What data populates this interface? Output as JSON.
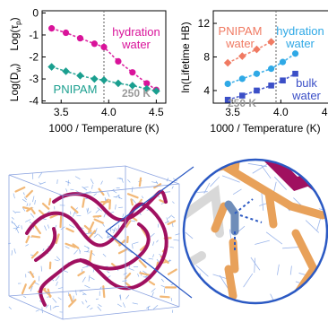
{
  "colors": {
    "magenta": "#d9139a",
    "teal": "#1a9f8f",
    "salmon": "#f07a62",
    "skyblue": "#2fa9e6",
    "navy": "#3b4fc7",
    "gray": "#9a9a9a",
    "polymer": "#a01060",
    "sidechain": "#f2b877",
    "water": "#5f8fe0",
    "inset_border": "#2b59c3"
  },
  "chart_data": [
    {
      "type": "scatter",
      "ylabel_top": "Log(τp)",
      "ylabel_bottom": "Log(Dw)",
      "xlabel": "1000 / Temperature (K)",
      "xlim": [
        3.3,
        4.6
      ],
      "ylim": [
        -4.1,
        0.1
      ],
      "xticks": [
        "3.5",
        "4.0",
        "4.5"
      ],
      "yticks": [
        "0",
        "-1",
        "-2",
        "-3",
        "-4"
      ],
      "vline": {
        "x": 3.95,
        "label": "250 K"
      },
      "series": [
        {
          "name": "hydration water",
          "color_key": "magenta",
          "marker": "circle",
          "x": [
            3.4,
            3.55,
            3.7,
            3.85,
            3.95,
            4.1,
            4.25,
            4.4,
            4.5
          ],
          "y": [
            -0.7,
            -0.9,
            -1.15,
            -1.4,
            -1.55,
            -2.2,
            -2.7,
            -3.2,
            -3.5
          ]
        },
        {
          "name": "PNIPAM",
          "color_key": "teal",
          "marker": "diamond",
          "x": [
            3.4,
            3.55,
            3.7,
            3.85,
            3.95,
            4.1,
            4.25,
            4.4,
            4.5
          ],
          "y": [
            -2.45,
            -2.65,
            -2.85,
            -3.0,
            -3.05,
            -3.2,
            -3.3,
            -3.45,
            -3.55
          ]
        }
      ]
    },
    {
      "type": "scatter",
      "ylabel": "ln(Lifetime HB)",
      "xlabel": "1000 / Temperature (K)",
      "xlim": [
        3.3,
        4.6
      ],
      "ylim": [
        2.5,
        13.5
      ],
      "xticks": [
        "3.5",
        "4.0",
        "4.5"
      ],
      "yticks": [
        "4",
        "8",
        "12"
      ],
      "vline": {
        "x": 3.95,
        "label": "250 K"
      },
      "series": [
        {
          "name": "PNIPAM water",
          "color_key": "salmon",
          "marker": "diamond",
          "x": [
            3.45,
            3.6,
            3.75,
            3.9
          ],
          "y": [
            7.3,
            8.1,
            8.9,
            9.8
          ]
        },
        {
          "name": "hydration water",
          "color_key": "skyblue",
          "marker": "circle",
          "x": [
            3.45,
            3.6,
            3.75,
            3.9,
            4.02,
            4.15
          ],
          "y": [
            4.8,
            5.4,
            6.0,
            6.6,
            7.4,
            8.4
          ]
        },
        {
          "name": "bulk water",
          "color_key": "navy",
          "marker": "square",
          "x": [
            3.45,
            3.6,
            3.75,
            3.9,
            4.02,
            4.15
          ],
          "y": [
            2.9,
            3.4,
            4.0,
            4.6,
            5.2,
            6.0
          ]
        }
      ]
    }
  ],
  "labels": {
    "left_x_axis": "1000 / Temperature (K)",
    "right_x_axis": "1000 / Temperature (K)",
    "hydration_water_line1": "hydration",
    "hydration_water_line2": "water",
    "pnipam": "PNIPAM",
    "temp_250": "250 K",
    "right_pnipam_line1": "PNIPAM",
    "right_pnipam_line2": "water",
    "right_hydration_line1": "hydration",
    "right_hydration_line2": "water",
    "bulk_line1": "bulk",
    "bulk_line2": "water",
    "tau_log": "Log(τ",
    "tau_sub": "p",
    "dw_log": "Log(D",
    "dw_sub": "w",
    "close_paren": ")",
    "ln_lifetime": "ln(Lifetime HB)"
  }
}
